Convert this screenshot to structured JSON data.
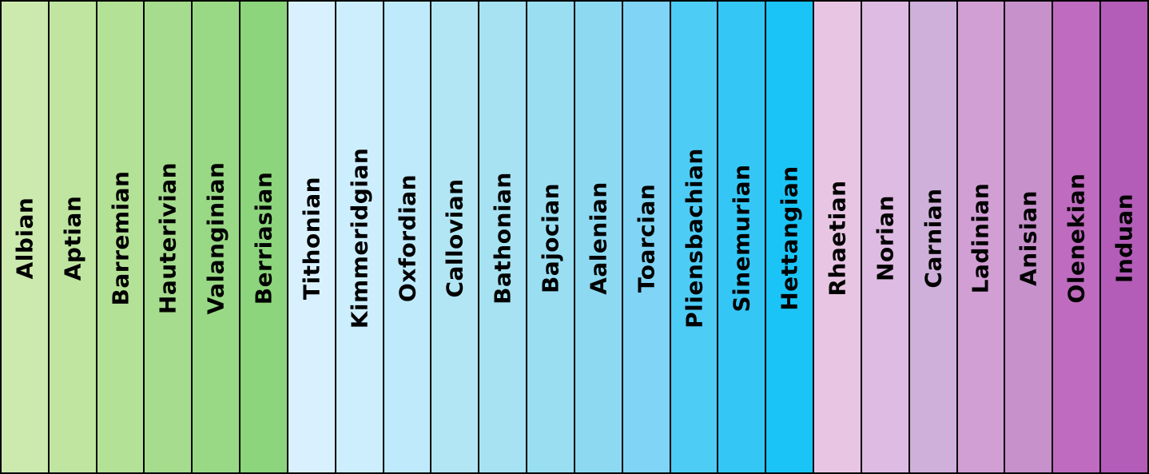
{
  "stages": [
    {
      "name": "Albian",
      "color": "#CCE9AE"
    },
    {
      "name": "Aptian",
      "color": "#BFE5A0"
    },
    {
      "name": "Barremian",
      "color": "#B3E196"
    },
    {
      "name": "Hauterivian",
      "color": "#A6DC8D"
    },
    {
      "name": "Valanginian",
      "color": "#99D985"
    },
    {
      "name": "Berriasian",
      "color": "#8CD57C"
    },
    {
      "name": "Tithonian",
      "color": "#D9F1FE"
    },
    {
      "name": "Kimmeridgian",
      "color": "#CCEEFD"
    },
    {
      "name": "Oxfordian",
      "color": "#BFEAFC"
    },
    {
      "name": "Callovian",
      "color": "#B2E6F4"
    },
    {
      "name": "Bathonian",
      "color": "#A6E2F1"
    },
    {
      "name": "Bajocian",
      "color": "#9ADEF2"
    },
    {
      "name": "Aalenian",
      "color": "#8DD9F2"
    },
    {
      "name": "Toarcian",
      "color": "#80D4F5"
    },
    {
      "name": "Pliensbachian",
      "color": "#4DCCF5"
    },
    {
      "name": "Sinemurian",
      "color": "#34C7F6"
    },
    {
      "name": "Hettangian",
      "color": "#1AC4F6"
    },
    {
      "name": "Rhaetian",
      "color": "#E8C6E3"
    },
    {
      "name": "Norian",
      "color": "#DEBBE3"
    },
    {
      "name": "Carnian",
      "color": "#CFB0DA"
    },
    {
      "name": "Ladinian",
      "color": "#D29FD5"
    },
    {
      "name": "Anisian",
      "color": "#C791CC"
    },
    {
      "name": "Olenekian",
      "color": "#BF6BBF"
    },
    {
      "name": "Induan",
      "color": "#B35CB8"
    }
  ]
}
